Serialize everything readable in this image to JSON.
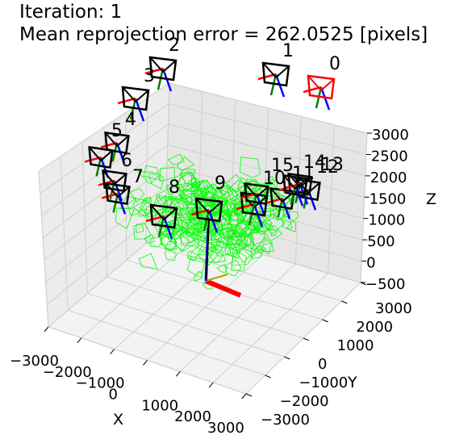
{
  "title_line1": "Iteration: 1",
  "title_line2": "Mean reprojection error = 262.0525 [pixels]",
  "chart_data": {
    "type": "scatter",
    "projection": "3d",
    "title": "Iteration: 1\nMean reprojection error = 262.0525 [pixels]",
    "xlabel": "X",
    "ylabel": "Y",
    "zlabel": "Z",
    "xlim": [
      -3000,
      3000
    ],
    "ylim": [
      -3000,
      3000
    ],
    "zlim": [
      -500,
      3000
    ],
    "x_ticks": [
      "-3000",
      "-2000",
      "-1000",
      "0",
      "1000",
      "2000",
      "3000"
    ],
    "y_ticks": [
      "-3000",
      "-2000",
      "-1000",
      "0",
      "1000",
      "2000",
      "3000"
    ],
    "z_ticks": [
      "-500",
      "0",
      "500",
      "1000",
      "1500",
      "2000",
      "2500",
      "3000"
    ],
    "grid": true,
    "cameras": [
      {
        "id": "0",
        "color": "#ff0000"
      },
      {
        "id": "1",
        "color": "#000000"
      },
      {
        "id": "2",
        "color": "#000000"
      },
      {
        "id": "3",
        "color": "#000000"
      },
      {
        "id": "4",
        "color": "#000000"
      },
      {
        "id": "5",
        "color": "#000000"
      },
      {
        "id": "6",
        "color": "#000000"
      },
      {
        "id": "7",
        "color": "#000000"
      },
      {
        "id": "8",
        "color": "#000000"
      },
      {
        "id": "9",
        "color": "#000000"
      },
      {
        "id": "10",
        "color": "#000000"
      },
      {
        "id": "11",
        "color": "#000000"
      },
      {
        "id": "12",
        "color": "#000000"
      },
      {
        "id": "13",
        "color": "#000000"
      },
      {
        "id": "14",
        "color": "#000000"
      },
      {
        "id": "15",
        "color": "#000000"
      }
    ],
    "point_cloud_color": "#00ff00",
    "axis_colors": {
      "x": "#ff0000",
      "y": "#008000",
      "z": "#0000ff"
    }
  }
}
